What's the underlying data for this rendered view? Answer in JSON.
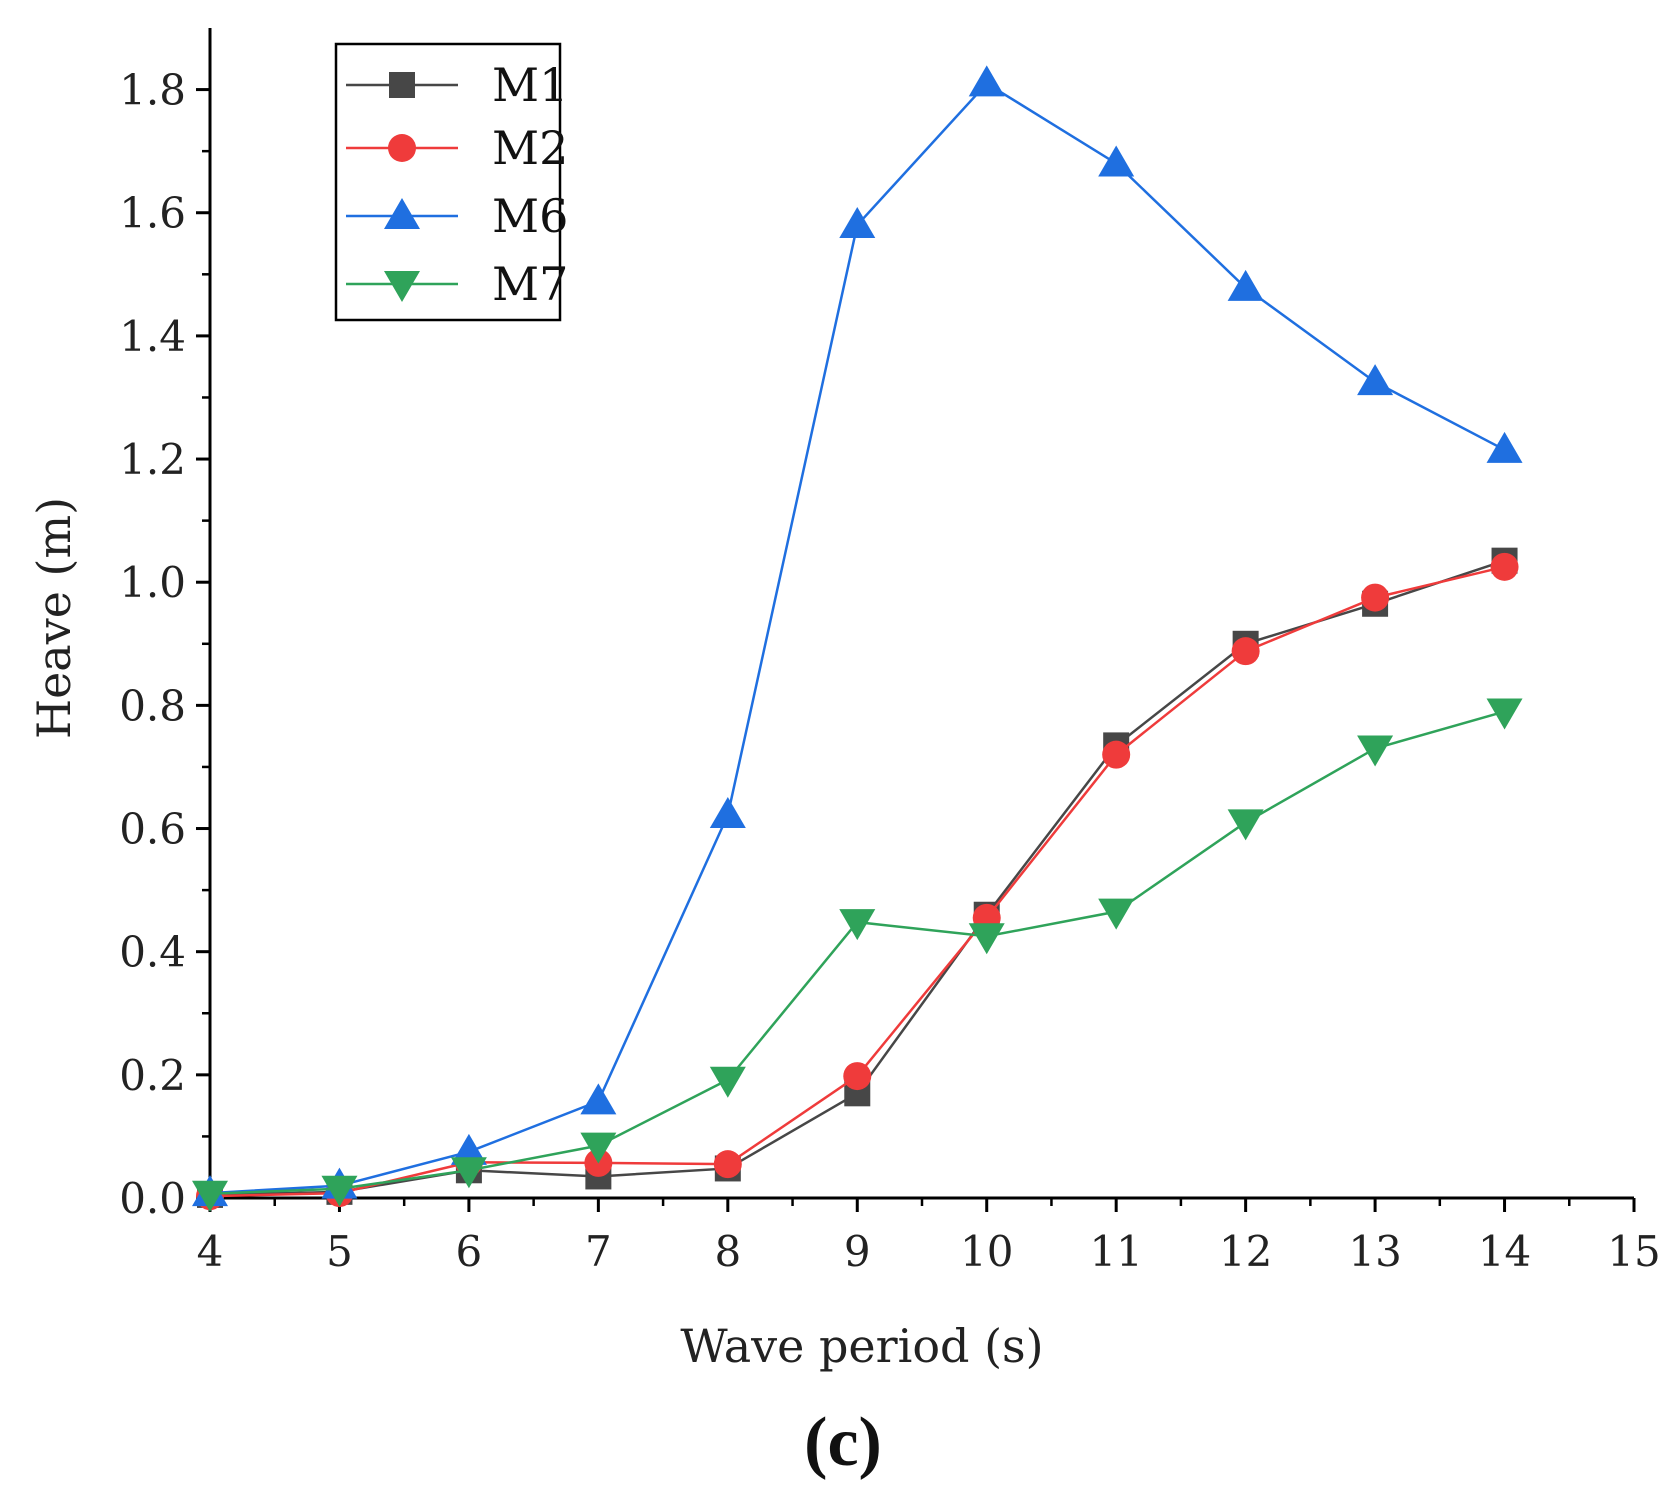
{
  "chart_data": {
    "type": "line",
    "title": "",
    "xlabel": "Wave period (s)",
    "ylabel": "Heave (m)",
    "xlim": [
      4,
      15
    ],
    "ylim": [
      0,
      1.9
    ],
    "xticks": [
      4,
      5,
      6,
      7,
      8,
      9,
      10,
      11,
      12,
      13,
      14,
      15
    ],
    "yticks": [
      0.0,
      0.2,
      0.4,
      0.6,
      0.8,
      1.0,
      1.2,
      1.4,
      1.6,
      1.8
    ],
    "ytick_labels": [
      "0.0",
      "0.2",
      "0.4",
      "0.6",
      "0.8",
      "1.0",
      "1.2",
      "1.4",
      "1.6",
      "1.8"
    ],
    "grid": false,
    "legend_position": "top-left",
    "x": [
      4,
      5,
      6,
      7,
      8,
      9,
      10,
      11,
      12,
      13,
      14
    ],
    "series": [
      {
        "name": "M1",
        "color": "#474747",
        "marker": "square",
        "values": [
          0.005,
          0.01,
          0.045,
          0.035,
          0.048,
          0.17,
          0.46,
          0.735,
          0.9,
          0.965,
          1.035
        ]
      },
      {
        "name": "M2",
        "color": "#ef3b3b",
        "marker": "circle",
        "values": [
          0.003,
          0.008,
          0.058,
          0.057,
          0.055,
          0.198,
          0.455,
          0.72,
          0.888,
          0.975,
          1.025
        ]
      },
      {
        "name": "M6",
        "color": "#1f6fe0",
        "marker": "triangle-up",
        "values": [
          0.008,
          0.02,
          0.075,
          0.157,
          0.622,
          1.58,
          1.81,
          1.68,
          1.478,
          1.325,
          1.215
        ]
      },
      {
        "name": "M7",
        "color": "#2fa35a",
        "marker": "triangle-down",
        "values": [
          0.007,
          0.015,
          0.045,
          0.085,
          0.192,
          0.448,
          0.425,
          0.465,
          0.61,
          0.73,
          0.79
        ]
      }
    ],
    "panel_label": "(c)"
  }
}
